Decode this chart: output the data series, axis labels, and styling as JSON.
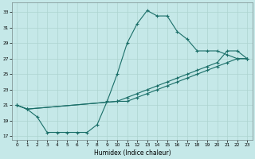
{
  "xlabel": "Humidex (Indice chaleur)",
  "bg_color": "#c5e8e8",
  "grid_color": "#aed4d0",
  "line_color": "#1a6e68",
  "xlim": [
    -0.5,
    23.5
  ],
  "ylim": [
    16.5,
    34.2
  ],
  "xticks": [
    0,
    1,
    2,
    3,
    4,
    5,
    6,
    7,
    8,
    9,
    10,
    11,
    12,
    13,
    14,
    15,
    16,
    17,
    18,
    19,
    20,
    21,
    22,
    23
  ],
  "yticks": [
    17,
    19,
    21,
    23,
    25,
    27,
    29,
    31,
    33
  ],
  "line1_x": [
    0,
    1,
    2,
    3,
    4,
    5,
    6,
    7,
    8,
    9,
    10,
    11,
    12,
    13,
    14,
    15,
    16,
    17,
    18,
    19,
    20,
    21,
    22,
    23
  ],
  "line1_y": [
    21.0,
    20.5,
    19.5,
    17.5,
    17.5,
    17.5,
    17.5,
    17.5,
    18.5,
    21.5,
    25.0,
    29.0,
    31.5,
    33.2,
    32.5,
    32.5,
    30.5,
    29.5,
    28.0,
    28.0,
    28.0,
    27.5,
    27.0,
    27.0
  ],
  "line2_x": [
    0,
    1,
    10,
    11,
    12,
    13,
    14,
    15,
    16,
    17,
    18,
    19,
    20,
    21,
    22,
    23
  ],
  "line2_y": [
    21.0,
    20.5,
    21.5,
    22.0,
    22.5,
    23.0,
    23.5,
    24.0,
    24.5,
    25.0,
    25.5,
    26.0,
    26.5,
    28.0,
    28.0,
    27.0
  ],
  "line3_x": [
    0,
    1,
    10,
    11,
    12,
    13,
    14,
    15,
    16,
    17,
    18,
    19,
    20,
    21,
    22,
    23
  ],
  "line3_y": [
    21.0,
    20.5,
    21.5,
    21.5,
    22.0,
    22.5,
    23.0,
    23.5,
    24.0,
    24.5,
    25.0,
    25.5,
    26.0,
    26.5,
    27.0,
    27.0
  ]
}
